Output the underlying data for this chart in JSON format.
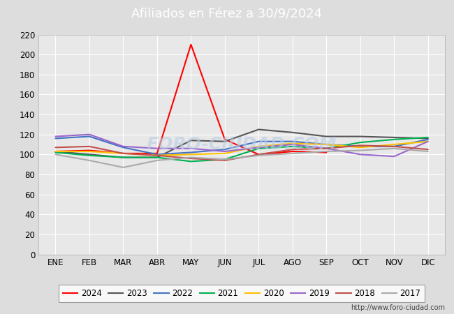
{
  "title": "Afiliados en Férez a 30/9/2024",
  "title_color": "#ffffff",
  "title_bg_color": "#4472c4",
  "months": [
    "ENE",
    "FEB",
    "MAR",
    "ABR",
    "MAY",
    "JUN",
    "JUL",
    "AGO",
    "SEP",
    "OCT",
    "NOV",
    "DIC"
  ],
  "ylim": [
    0,
    220
  ],
  "yticks": [
    0,
    20,
    40,
    60,
    80,
    100,
    120,
    140,
    160,
    180,
    200,
    220
  ],
  "series": {
    "2024": {
      "color": "#ff0000",
      "values": [
        103,
        104,
        101,
        101,
        210,
        115,
        100,
        103,
        102,
        null,
        null,
        null
      ]
    },
    "2023": {
      "color": "#555555",
      "values": [
        103,
        100,
        97,
        97,
        114,
        113,
        125,
        122,
        118,
        118,
        117,
        116
      ]
    },
    "2022": {
      "color": "#4472c4",
      "values": [
        116,
        118,
        107,
        100,
        102,
        105,
        113,
        113,
        110,
        108,
        108,
        115
      ]
    },
    "2021": {
      "color": "#00b050",
      "values": [
        102,
        99,
        97,
        97,
        93,
        95,
        106,
        108,
        106,
        112,
        115,
        117
      ]
    },
    "2020": {
      "color": "#ffc000",
      "values": [
        103,
        103,
        101,
        99,
        100,
        101,
        108,
        111,
        110,
        107,
        110,
        113
      ]
    },
    "2019": {
      "color": "#9966cc",
      "values": [
        118,
        120,
        108,
        106,
        106,
        103,
        107,
        110,
        106,
        100,
        98,
        113
      ]
    },
    "2018": {
      "color": "#c0504d",
      "values": [
        107,
        108,
        101,
        99,
        96,
        94,
        100,
        105,
        106,
        109,
        108,
        105
      ]
    },
    "2017": {
      "color": "#aaaaaa",
      "values": [
        100,
        94,
        87,
        94,
        97,
        95,
        99,
        101,
        103,
        104,
        106,
        103
      ]
    }
  },
  "legend_years": [
    "2024",
    "2023",
    "2022",
    "2021",
    "2020",
    "2019",
    "2018",
    "2017"
  ],
  "watermark": "FORO-CIUDAD.COM",
  "footer_url": "http://www.foro-ciudad.com",
  "outer_bg_color": "#dddddd",
  "plot_bg_color": "#e8e8e8",
  "grid_color": "#ffffff",
  "figsize": [
    6.5,
    4.5
  ],
  "dpi": 100
}
